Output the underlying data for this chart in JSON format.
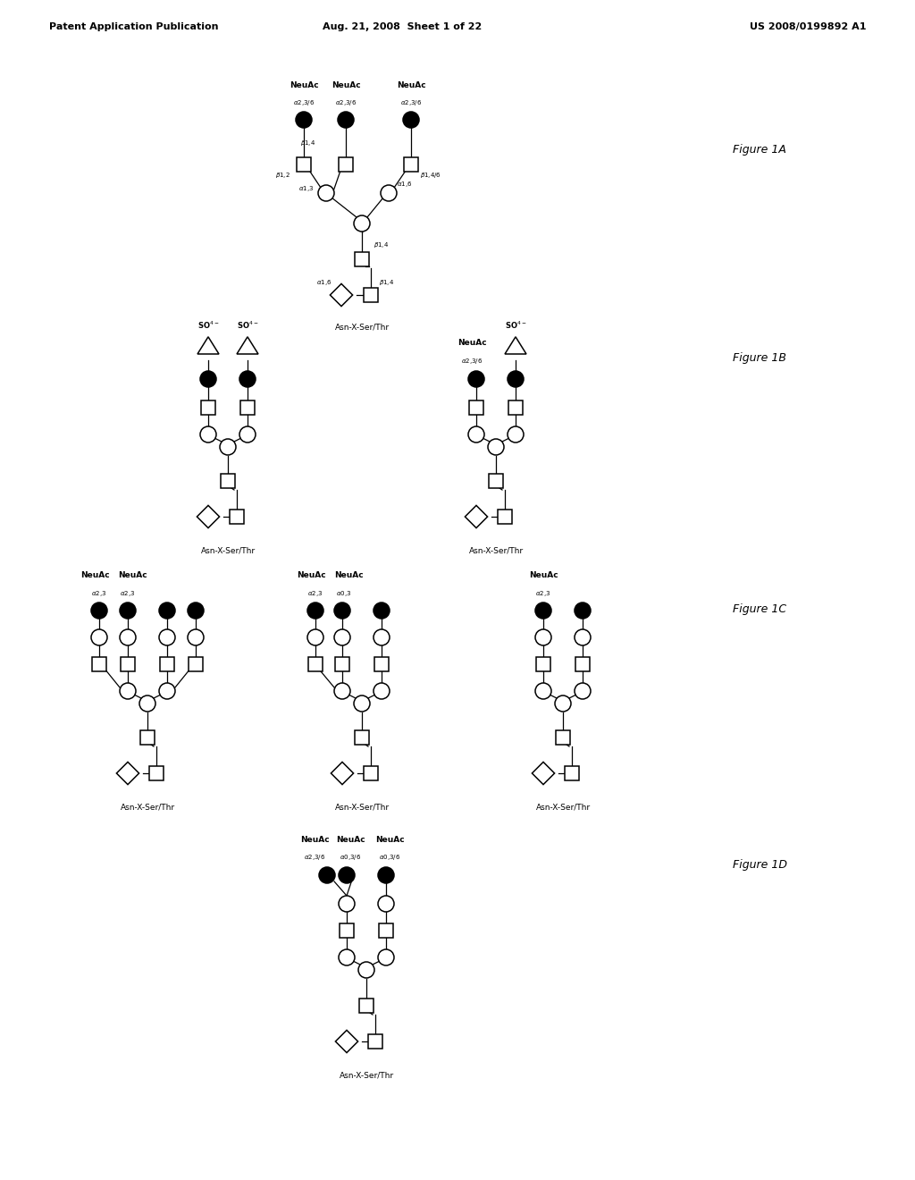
{
  "title_left": "Patent Application Publication",
  "title_mid": "Aug. 21, 2008  Sheet 1 of 22",
  "title_right": "US 2008/0199892 A1",
  "bg_color": "#ffffff",
  "asn_label": "Asn-X-Ser/Thr"
}
